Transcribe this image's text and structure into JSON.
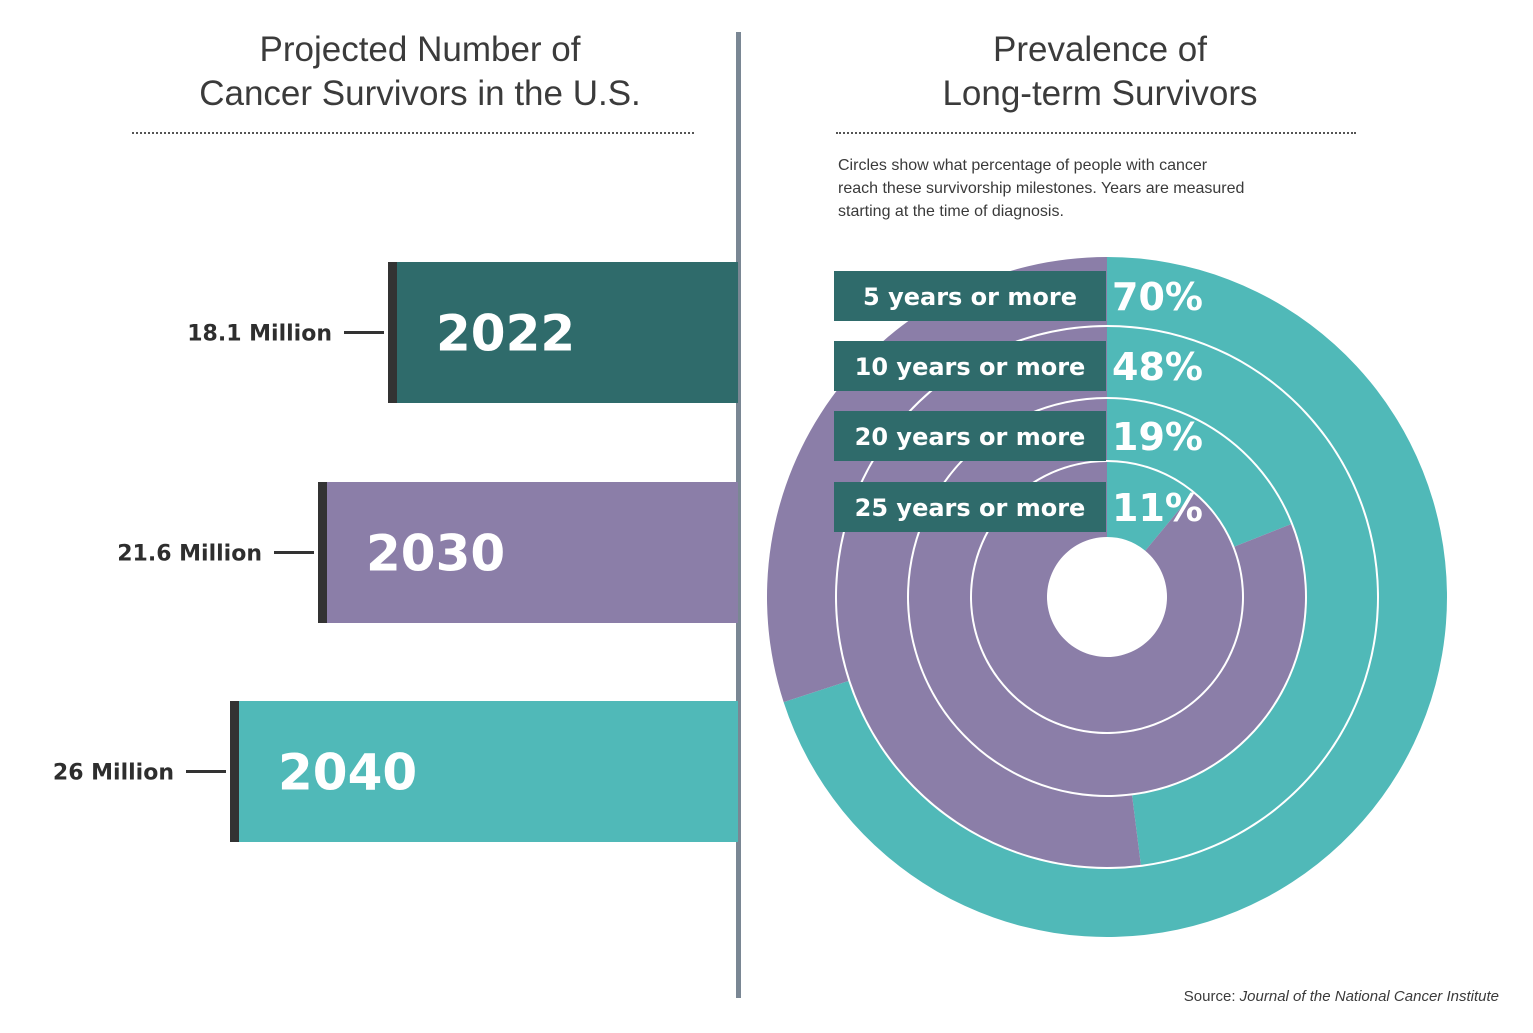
{
  "left": {
    "title": "Projected Number of\nCancer Survivors in the U.S."
  },
  "right": {
    "title": "Prevalence of\nLong-term Survivors",
    "description": "Circles show what percentage of people with cancer\nreach these survivorship milestones. Years are measured\nstarting at the time of diagnosis."
  },
  "source": {
    "prefix": "Source: ",
    "name": "Journal of the National Cancer Institute"
  },
  "colors": {
    "dark_teal": "#2f6b6b",
    "purple": "#8b7ea8",
    "teal": "#50b9b8",
    "bar_edge": "#333333",
    "divider": "#7a8794"
  },
  "chart_data": [
    {
      "type": "bar",
      "orientation": "horizontal",
      "categories": [
        "2022",
        "2030",
        "2040"
      ],
      "values": [
        18.1,
        21.6,
        26
      ],
      "value_labels": [
        "18.1 Million",
        "21.6 Million",
        "26 Million"
      ],
      "unit": "Million",
      "colors": [
        "#2f6b6b",
        "#8b7ea8",
        "#50b9b8"
      ]
    },
    {
      "type": "pie",
      "style": "concentric-rings",
      "categories": [
        "5 years or more",
        "10 years or more",
        "20 years or more",
        "25 years or more"
      ],
      "values": [
        70,
        48,
        19,
        11
      ],
      "value_labels": [
        "70%",
        "48%",
        "19%",
        "11%"
      ],
      "unit": "%",
      "filled_color": "#50b9b8",
      "remainder_color": "#8b7ea8",
      "label_color": "#2f6b6b"
    }
  ]
}
